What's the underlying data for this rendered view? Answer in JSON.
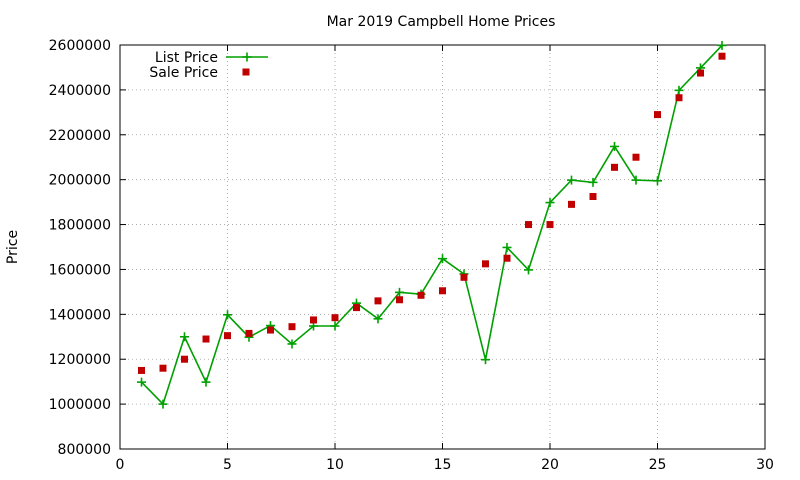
{
  "chart_data": {
    "type": "line",
    "title": "Mar 2019 Campbell Home Prices",
    "xlabel": "",
    "ylabel": "Price",
    "xlim": [
      0,
      30
    ],
    "ylim": [
      800000,
      2600000
    ],
    "xticks": [
      0,
      5,
      10,
      15,
      20,
      25,
      30
    ],
    "yticks": [
      800000,
      1000000,
      1200000,
      1400000,
      1600000,
      1800000,
      2000000,
      2200000,
      2400000,
      2600000
    ],
    "grid": true,
    "legend_position": "top-left",
    "series": [
      {
        "name": "List Price",
        "style": "linespoints",
        "marker": "plus",
        "color": "#00a000",
        "x": [
          1,
          2,
          3,
          4,
          5,
          6,
          7,
          8,
          9,
          10,
          11,
          12,
          13,
          14,
          15,
          16,
          17,
          18,
          19,
          20,
          21,
          22,
          23,
          24,
          25,
          26,
          27,
          28
        ],
        "values": [
          1098000,
          1000000,
          1300000,
          1098000,
          1398000,
          1298000,
          1350000,
          1268000,
          1348000,
          1348000,
          1450000,
          1380000,
          1498000,
          1490000,
          1648000,
          1580000,
          1198000,
          1698000,
          1598000,
          1898000,
          1998000,
          1988000,
          2148000,
          1998000,
          1995000,
          2398000,
          2498000,
          2598000
        ]
      },
      {
        "name": "Sale Price",
        "style": "points",
        "marker": "square",
        "color": "#c00000",
        "x": [
          1,
          2,
          3,
          4,
          5,
          6,
          7,
          8,
          9,
          10,
          11,
          12,
          13,
          14,
          15,
          16,
          17,
          18,
          19,
          20,
          21,
          22,
          23,
          24,
          25,
          26,
          27,
          28
        ],
        "values": [
          1150000,
          1160000,
          1200000,
          1290000,
          1305000,
          1315000,
          1330000,
          1345000,
          1375000,
          1385000,
          1430000,
          1460000,
          1465000,
          1485000,
          1505000,
          1565000,
          1625000,
          1650000,
          1800000,
          1800000,
          1890000,
          1925000,
          2055000,
          2100000,
          2290000,
          2365000,
          2475000,
          2550000
        ]
      }
    ]
  }
}
